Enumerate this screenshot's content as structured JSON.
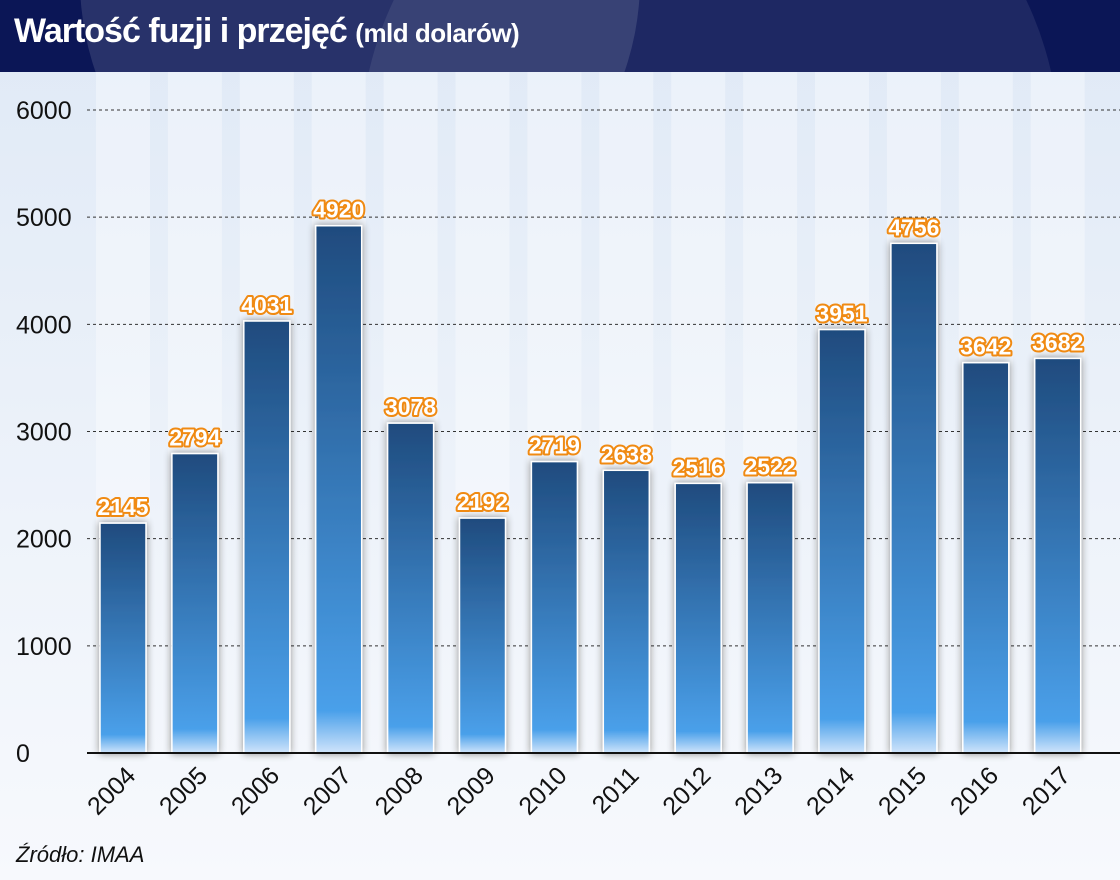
{
  "title": "Wartość fuzji i przejęć",
  "subtitle": "(mld dolarów)",
  "source": "Źródło: IMAA",
  "colors": {
    "header": "#0b1656",
    "bar_top": "#1f4b7e",
    "bar_bottom": "#4aa0ea",
    "label_outline": "#f08a12"
  },
  "chart_data": {
    "type": "bar",
    "title": "Wartość fuzji i przejęć (mld dolarów)",
    "xlabel": "",
    "ylabel": "",
    "ylim": [
      0,
      6000
    ],
    "yticks": [
      0,
      1000,
      2000,
      3000,
      4000,
      5000,
      6000
    ],
    "grid": true,
    "categories": [
      "2004",
      "2005",
      "2006",
      "2007",
      "2008",
      "2009",
      "2010",
      "2011",
      "2012",
      "2013",
      "2014",
      "2015",
      "2016",
      "2017"
    ],
    "values": [
      2145,
      2794,
      4031,
      4920,
      3078,
      2192,
      2719,
      2638,
      2516,
      2522,
      3951,
      4756,
      3642,
      3682
    ]
  }
}
